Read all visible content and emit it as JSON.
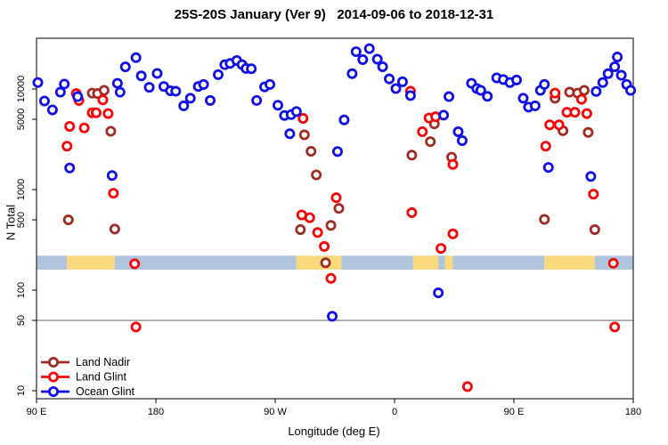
{
  "title": "25S-20S January (Ver 9)   2014-09-06 to 2018-12-31",
  "chart_data": {
    "type": "scatter",
    "title": "25S-20S January (Ver 9)   2014-09-06 to 2018-12-31",
    "xlabel": "Longitude (deg E)",
    "ylabel": "N Total",
    "x_axis": {
      "range_deg_east": [
        90,
        540
      ],
      "ticks": [
        {
          "deg": 90,
          "label": "90 E"
        },
        {
          "deg": 180,
          "label": "180"
        },
        {
          "deg": 270,
          "label": "90 W"
        },
        {
          "deg": 360,
          "label": "0"
        },
        {
          "deg": 450,
          "label": "90 E"
        },
        {
          "deg": 540,
          "label": "180"
        }
      ]
    },
    "y_axis": {
      "scale": "log10",
      "range": [
        8.3,
        32000
      ],
      "ticks": [
        {
          "value": 10,
          "label": "10"
        },
        {
          "value": 50,
          "label": "50"
        },
        {
          "value": 100,
          "label": "100"
        },
        {
          "value": 500,
          "label": "500"
        },
        {
          "value": 1000,
          "label": "1000"
        },
        {
          "value": 5000,
          "label": "5000"
        },
        {
          "value": 10000,
          "label": "10000"
        }
      ]
    },
    "reference_line": {
      "value": 50,
      "color": "#808080"
    },
    "land_ocean_band": {
      "value_top": 220,
      "value_bottom": 160,
      "ocean_color": "#B0C4DE",
      "land_color": "#FAD97E",
      "segments": [
        {
          "from": 90,
          "to": 113,
          "type": "ocean"
        },
        {
          "from": 113,
          "to": 149,
          "type": "land"
        },
        {
          "from": 149,
          "to": 286,
          "type": "ocean"
        },
        {
          "from": 286,
          "to": 320,
          "type": "land"
        },
        {
          "from": 320,
          "to": 374,
          "type": "ocean"
        },
        {
          "from": 374,
          "to": 393,
          "type": "land"
        },
        {
          "from": 393,
          "to": 398,
          "type": "ocean"
        },
        {
          "from": 398,
          "to": 404,
          "type": "land"
        },
        {
          "from": 404,
          "to": 473,
          "type": "ocean"
        },
        {
          "from": 473,
          "to": 511,
          "type": "land"
        },
        {
          "from": 511,
          "to": 540,
          "type": "ocean"
        }
      ]
    },
    "legend": {
      "position": "bottom-left",
      "items": [
        "Land Nadir",
        "Land Glint",
        "Ocean Glint"
      ]
    },
    "series": [
      {
        "name": "Land Nadir",
        "color": "#A02B24",
        "points": [
          [
            132,
            9100
          ],
          [
            136,
            9000
          ],
          [
            141,
            9700
          ],
          [
            146,
            3800
          ],
          [
            114,
            500
          ],
          [
            149,
            405
          ],
          [
            292,
            3500
          ],
          [
            297,
            2400
          ],
          [
            301,
            1400
          ],
          [
            318,
            650
          ],
          [
            312,
            440
          ],
          [
            289,
            400
          ],
          [
            308,
            187
          ],
          [
            390,
            4500
          ],
          [
            387,
            3000
          ],
          [
            373,
            2200
          ],
          [
            403,
            2100
          ],
          [
            481,
            8100
          ],
          [
            492,
            9300
          ],
          [
            498,
            9100
          ],
          [
            503,
            9700
          ],
          [
            487,
            3850
          ],
          [
            506,
            3700
          ],
          [
            473,
            505
          ],
          [
            511,
            400
          ]
        ]
      },
      {
        "name": "Land Glint",
        "color": "#F50505",
        "points": [
          [
            120,
            9000
          ],
          [
            122,
            7700
          ],
          [
            132,
            5800
          ],
          [
            135,
            5800
          ],
          [
            140,
            7800
          ],
          [
            144,
            5700
          ],
          [
            115,
            4250
          ],
          [
            126,
            4100
          ],
          [
            113,
            2700
          ],
          [
            148,
            920
          ],
          [
            164,
            183
          ],
          [
            165,
            43
          ],
          [
            291,
            5100
          ],
          [
            316,
            830
          ],
          [
            290,
            560
          ],
          [
            296,
            525
          ],
          [
            302,
            374
          ],
          [
            307,
            272
          ],
          [
            312,
            131
          ],
          [
            372,
            9500
          ],
          [
            386,
            5150
          ],
          [
            391,
            5300
          ],
          [
            381,
            3760
          ],
          [
            404,
            1780
          ],
          [
            373,
            590
          ],
          [
            404,
            363
          ],
          [
            395,
            260
          ],
          [
            415,
            11
          ],
          [
            481,
            9100
          ],
          [
            501,
            7900
          ],
          [
            490,
            5870
          ],
          [
            496,
            5870
          ],
          [
            505,
            5700
          ],
          [
            477,
            4400
          ],
          [
            484,
            4400
          ],
          [
            474,
            2700
          ],
          [
            510,
            900
          ],
          [
            525,
            185
          ],
          [
            526,
            43
          ]
        ]
      },
      {
        "name": "Ocean Glint",
        "color": "#0F0FE8",
        "points": [
          [
            91,
            11600
          ],
          [
            96,
            7600
          ],
          [
            102,
            6200
          ],
          [
            108,
            9300
          ],
          [
            111,
            11200
          ],
          [
            115,
            1640
          ],
          [
            121,
            8400
          ],
          [
            147,
            1380
          ],
          [
            151,
            11400
          ],
          [
            153,
            9300
          ],
          [
            157,
            16600
          ],
          [
            165,
            20500
          ],
          [
            169,
            13500
          ],
          [
            175,
            10400
          ],
          [
            181,
            14300
          ],
          [
            186,
            10600
          ],
          [
            191,
            9600
          ],
          [
            195,
            9500
          ],
          [
            201,
            6800
          ],
          [
            206,
            8100
          ],
          [
            212,
            10600
          ],
          [
            216,
            11100
          ],
          [
            221,
            7700
          ],
          [
            227,
            13900
          ],
          [
            232,
            17450
          ],
          [
            236,
            17950
          ],
          [
            241,
            19200
          ],
          [
            245,
            17450
          ],
          [
            248,
            16000
          ],
          [
            252,
            15900
          ],
          [
            256,
            7700
          ],
          [
            262,
            10500
          ],
          [
            266,
            11100
          ],
          [
            272,
            6900
          ],
          [
            277,
            5450
          ],
          [
            282,
            5560
          ],
          [
            286,
            5970
          ],
          [
            281,
            3590
          ],
          [
            322,
            4930
          ],
          [
            317,
            2390
          ],
          [
            313,
            55
          ],
          [
            331,
            23500
          ],
          [
            336,
            19600
          ],
          [
            341,
            25200
          ],
          [
            347,
            19800
          ],
          [
            351,
            16650
          ],
          [
            328,
            14200
          ],
          [
            356,
            12600
          ],
          [
            361,
            10100
          ],
          [
            366,
            11800
          ],
          [
            372,
            8600
          ],
          [
            401,
            8400
          ],
          [
            397,
            5500
          ],
          [
            408,
            3760
          ],
          [
            411,
            3070
          ],
          [
            418,
            11400
          ],
          [
            422,
            10100
          ],
          [
            425,
            9700
          ],
          [
            430,
            8450
          ],
          [
            437,
            12900
          ],
          [
            393,
            94
          ],
          [
            442,
            12430
          ],
          [
            447,
            11600
          ],
          [
            452,
            12300
          ],
          [
            457,
            8100
          ],
          [
            461,
            6600
          ],
          [
            466,
            6800
          ],
          [
            470,
            9700
          ],
          [
            473,
            11100
          ],
          [
            476,
            1660
          ],
          [
            508,
            1350
          ],
          [
            512,
            9460
          ],
          [
            517,
            11600
          ],
          [
            521,
            14200
          ],
          [
            526,
            16650
          ],
          [
            528,
            20800
          ],
          [
            531,
            13700
          ],
          [
            535,
            11100
          ],
          [
            538,
            9700
          ]
        ]
      }
    ]
  }
}
